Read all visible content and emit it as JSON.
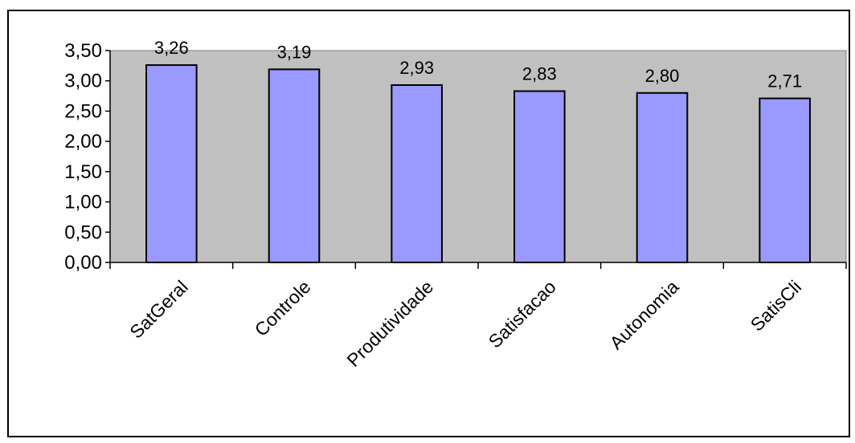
{
  "chart_data": {
    "type": "bar",
    "title": "",
    "xlabel": "",
    "ylabel": "",
    "categories": [
      "SatGeral",
      "Controle",
      "Produtividade",
      "Satisfacao",
      "Autonomia",
      "SatisCli"
    ],
    "values": [
      3.26,
      3.19,
      2.93,
      2.83,
      2.8,
      2.71
    ],
    "value_labels": [
      "3,26",
      "3,19",
      "2,93",
      "2,83",
      "2,80",
      "2,71"
    ],
    "ylim": [
      0,
      3.5
    ],
    "yticks": [
      0,
      0.5,
      1.0,
      1.5,
      2.0,
      2.5,
      3.0,
      3.5
    ],
    "ytick_labels": [
      "0,00",
      "0,50",
      "1,00",
      "1,50",
      "2,00",
      "2,50",
      "3,00",
      "3,50"
    ],
    "grid": false,
    "legend": "none",
    "colors": {
      "bar_fill": "#9999FF",
      "bar_stroke": "#000000",
      "plot_background": "#C0C0C0",
      "page_background": "#FFFFFF",
      "frame": "#000000"
    }
  }
}
